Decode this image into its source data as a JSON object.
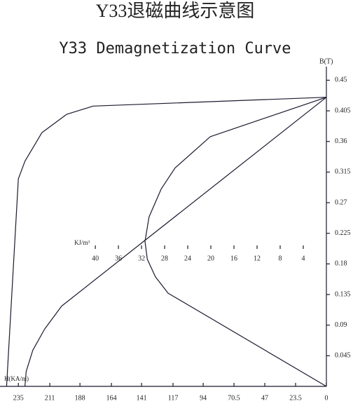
{
  "chart_data": {
    "type": "demagnetization",
    "title": "Y33退磁曲线示意图",
    "subtitle": "Y33 Demagnetization Curve",
    "y_label": "B(T)",
    "x_label": "H(KA/m)",
    "x2_label": "KJ/m³",
    "xlim": [
      249,
      0
    ],
    "xticks": [
      235,
      211,
      188,
      164,
      141,
      117,
      94,
      70.5,
      47,
      23.5,
      0
    ],
    "x2lim": [
      56.5,
      0
    ],
    "x2ticks": [
      40,
      36,
      32,
      28,
      24,
      20,
      16,
      12,
      8,
      4
    ],
    "ylim": [
      0,
      0.47
    ],
    "yticks": [
      0.045,
      0.09,
      0.135,
      0.18,
      0.225,
      0.27,
      0.315,
      0.36,
      0.405,
      0.45
    ],
    "color": "#1a1a2e",
    "series": [
      {
        "x": [
          0,
          178,
          198,
          217,
          230,
          235,
          244
        ],
        "values": [
          0.425,
          0.412,
          0.4,
          0.373,
          0.331,
          0.305,
          0
        ]
      },
      {
        "x": [
          0,
          202,
          215,
          224,
          229,
          230
        ],
        "values": [
          0.425,
          0.118,
          0.084,
          0.053,
          0.022,
          0
        ]
      },
      {
        "axis": "x2",
        "x": [
          0,
          20.1,
          26.2,
          28.6,
          30.7,
          31.4,
          31.0,
          29.6,
          27.4,
          0
        ],
        "values": [
          0.425,
          0.367,
          0.321,
          0.29,
          0.249,
          0.213,
          0.187,
          0.161,
          0.137,
          0
        ]
      }
    ]
  }
}
